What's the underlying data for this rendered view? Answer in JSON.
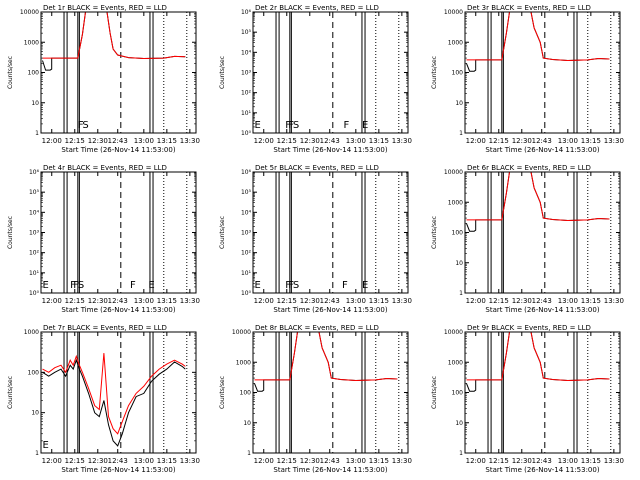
{
  "chart_data": {
    "type": "line",
    "x_ticks": [
      "12:00",
      "12:15",
      "12:30",
      "12:43",
      "13:00",
      "13:15",
      "13:30"
    ],
    "xlabel": "Start Time (26-Nov-14 11:53:00)",
    "ylabel": "Counts/sec",
    "series_names": [
      "BLACK = Events",
      "RED = LLD"
    ],
    "colors": {
      "events": "#000000",
      "lld": "#ff0000"
    },
    "log_y": true,
    "marker_lines": {
      "solid": [
        "12:08",
        "12:10",
        "12:17",
        "12:18",
        "13:04",
        "13:06"
      ],
      "dashed": [
        "12:45"
      ],
      "dotted": [
        "13:13",
        "13:28"
      ]
    },
    "panels": [
      {
        "title": "Det 1r BLACK = Events, RED = LLD",
        "ylim_exp": [
          0,
          4
        ],
        "tick_labels": [
          "1",
          "10",
          "100",
          "1000",
          "10000"
        ],
        "letters": [
          {
            "text": "F",
            "t": "12:17"
          },
          {
            "text": "S",
            "t": "12:20"
          }
        ],
        "events": [
          [
            "11:54",
            250
          ],
          [
            "11:56",
            120
          ],
          [
            "11:59",
            120
          ],
          [
            "12:00",
            130
          ],
          [
            "12:00",
            300
          ],
          [
            "12:08",
            300
          ],
          [
            "12:17",
            300
          ],
          [
            "12:20",
            1800
          ],
          [
            "12:22",
            10000
          ],
          [
            "12:36",
            10000
          ],
          [
            "12:38",
            2000
          ],
          [
            "12:40",
            600
          ],
          [
            "12:43",
            380
          ],
          [
            "12:50",
            310
          ],
          [
            "13:00",
            290
          ],
          [
            "13:13",
            300
          ],
          [
            "13:20",
            340
          ],
          [
            "13:27",
            330
          ]
        ],
        "lld": [
          [
            "11:54",
            300
          ],
          [
            "12:08",
            300
          ],
          [
            "12:17",
            300
          ],
          [
            "12:20",
            1800
          ],
          [
            "12:22",
            10000
          ],
          [
            "12:36",
            10000
          ],
          [
            "12:38",
            2000
          ],
          [
            "12:40",
            600
          ],
          [
            "12:43",
            380
          ],
          [
            "12:50",
            310
          ],
          [
            "13:00",
            290
          ],
          [
            "13:13",
            300
          ],
          [
            "13:20",
            340
          ],
          [
            "13:27",
            330
          ]
        ]
      },
      {
        "title": "Det 2r BLACK = Events, RED = LLD",
        "ylim_exp": [
          0,
          6
        ],
        "tick_labels": [
          "10⁰",
          "10¹",
          "10²",
          "10³",
          "10⁴",
          "10⁵",
          "10⁶"
        ],
        "letters": [
          {
            "text": "E",
            "t": "11:54"
          },
          {
            "text": "F",
            "t": "12:14"
          },
          {
            "text": "F",
            "t": "12:16"
          },
          {
            "text": "S",
            "t": "12:19"
          },
          {
            "text": "F",
            "t": "12:52"
          },
          {
            "text": "E",
            "t": "13:04"
          }
        ],
        "events": [],
        "lld": []
      },
      {
        "title": "Det 3r BLACK = Events, RED = LLD",
        "ylim_exp": [
          0,
          4
        ],
        "tick_labels": [
          "1",
          "10",
          "100",
          "1000",
          "10000"
        ],
        "letters": [],
        "events": [
          [
            "11:54",
            200
          ],
          [
            "11:56",
            110
          ],
          [
            "11:59",
            110
          ],
          [
            "12:00",
            120
          ],
          [
            "12:00",
            260
          ],
          [
            "12:08",
            260
          ],
          [
            "12:17",
            260
          ],
          [
            "12:20",
            2000
          ],
          [
            "12:22",
            10000
          ],
          [
            "12:36",
            10000
          ],
          [
            "12:38",
            3000
          ],
          [
            "12:42",
            1000
          ],
          [
            "12:44",
            300
          ],
          [
            "12:50",
            270
          ],
          [
            "13:00",
            250
          ],
          [
            "13:13",
            260
          ],
          [
            "13:20",
            290
          ],
          [
            "13:27",
            280
          ]
        ],
        "lld": [
          [
            "11:54",
            260
          ],
          [
            "12:08",
            260
          ],
          [
            "12:17",
            260
          ],
          [
            "12:20",
            2000
          ],
          [
            "12:22",
            10000
          ],
          [
            "12:36",
            10000
          ],
          [
            "12:38",
            3000
          ],
          [
            "12:42",
            1000
          ],
          [
            "12:44",
            300
          ],
          [
            "12:50",
            270
          ],
          [
            "13:00",
            250
          ],
          [
            "13:13",
            260
          ],
          [
            "13:20",
            290
          ],
          [
            "13:27",
            280
          ]
        ]
      },
      {
        "title": "Det 4r BLACK = Events, RED = LLD",
        "ylim_exp": [
          0,
          6
        ],
        "tick_labels": [
          "10⁰",
          "10¹",
          "10²",
          "10³",
          "10⁴",
          "10⁵",
          "10⁶"
        ],
        "letters": [
          {
            "text": "E",
            "t": "11:54"
          },
          {
            "text": "F",
            "t": "12:12"
          },
          {
            "text": "F",
            "t": "12:14"
          },
          {
            "text": "S",
            "t": "12:17"
          },
          {
            "text": "F",
            "t": "12:51"
          },
          {
            "text": "E",
            "t": "13:03"
          }
        ],
        "events": [],
        "lld": []
      },
      {
        "title": "Det 5r BLACK = Events, RED = LLD",
        "ylim_exp": [
          0,
          6
        ],
        "tick_labels": [
          "10⁰",
          "10¹",
          "10²",
          "10³",
          "10⁴",
          "10⁵",
          "10⁶"
        ],
        "letters": [
          {
            "text": "E",
            "t": "11:54"
          },
          {
            "text": "F",
            "t": "12:14"
          },
          {
            "text": "F",
            "t": "12:16"
          },
          {
            "text": "S",
            "t": "12:19"
          },
          {
            "text": "F",
            "t": "12:51"
          },
          {
            "text": "E",
            "t": "13:04"
          }
        ],
        "events": [],
        "lld": []
      },
      {
        "title": "Det 6r BLACK = Events, RED = LLD",
        "ylim_exp": [
          0,
          4
        ],
        "tick_labels": [
          "1",
          "10",
          "100",
          "1000",
          "10000"
        ],
        "letters": [],
        "events": [
          [
            "11:54",
            200
          ],
          [
            "11:56",
            110
          ],
          [
            "11:59",
            110
          ],
          [
            "12:00",
            120
          ],
          [
            "12:00",
            260
          ],
          [
            "12:08",
            260
          ],
          [
            "12:17",
            260
          ],
          [
            "12:20",
            2000
          ],
          [
            "12:22",
            10000
          ],
          [
            "12:36",
            10000
          ],
          [
            "12:38",
            3000
          ],
          [
            "12:42",
            1000
          ],
          [
            "12:44",
            300
          ],
          [
            "12:50",
            270
          ],
          [
            "13:00",
            250
          ],
          [
            "13:13",
            260
          ],
          [
            "13:20",
            290
          ],
          [
            "13:27",
            280
          ]
        ],
        "lld": [
          [
            "11:54",
            260
          ],
          [
            "12:08",
            260
          ],
          [
            "12:17",
            260
          ],
          [
            "12:20",
            2000
          ],
          [
            "12:22",
            10000
          ],
          [
            "12:36",
            10000
          ],
          [
            "12:38",
            3000
          ],
          [
            "12:42",
            1000
          ],
          [
            "12:44",
            300
          ],
          [
            "12:50",
            270
          ],
          [
            "13:00",
            250
          ],
          [
            "13:13",
            260
          ],
          [
            "13:20",
            290
          ],
          [
            "13:27",
            280
          ]
        ]
      },
      {
        "title": "Det 7r BLACK = Events, RED = LLD",
        "ylim_exp": [
          0,
          3
        ],
        "tick_labels": [
          "1",
          "10",
          "100",
          "1000"
        ],
        "letters": [
          {
            "text": "E",
            "t": "11:54"
          }
        ],
        "events": [
          [
            "11:54",
            100
          ],
          [
            "11:58",
            80
          ],
          [
            "12:02",
            100
          ],
          [
            "12:06",
            120
          ],
          [
            "12:09",
            80
          ],
          [
            "12:12",
            150
          ],
          [
            "12:14",
            120
          ],
          [
            "12:16",
            200
          ],
          [
            "12:18",
            120
          ],
          [
            "12:20",
            80
          ],
          [
            "12:24",
            30
          ],
          [
            "12:28",
            10
          ],
          [
            "12:31",
            8
          ],
          [
            "12:34",
            20
          ],
          [
            "12:37",
            5
          ],
          [
            "12:40",
            2
          ],
          [
            "12:43",
            1.5
          ],
          [
            "12:46",
            3
          ],
          [
            "12:50",
            10
          ],
          [
            "12:55",
            25
          ],
          [
            "13:00",
            30
          ],
          [
            "13:05",
            60
          ],
          [
            "13:10",
            90
          ],
          [
            "13:15",
            120
          ],
          [
            "13:20",
            180
          ],
          [
            "13:25",
            140
          ],
          [
            "13:27",
            120
          ]
        ],
        "lld": [
          [
            "11:54",
            120
          ],
          [
            "11:58",
            100
          ],
          [
            "12:02",
            130
          ],
          [
            "12:06",
            150
          ],
          [
            "12:09",
            100
          ],
          [
            "12:12",
            200
          ],
          [
            "12:14",
            150
          ],
          [
            "12:16",
            250
          ],
          [
            "12:18",
            150
          ],
          [
            "12:20",
            100
          ],
          [
            "12:24",
            40
          ],
          [
            "12:28",
            15
          ],
          [
            "12:31",
            12
          ],
          [
            "12:34",
            300
          ],
          [
            "12:37",
            8
          ],
          [
            "12:40",
            4
          ],
          [
            "12:43",
            3
          ],
          [
            "12:46",
            6
          ],
          [
            "12:50",
            15
          ],
          [
            "12:55",
            30
          ],
          [
            "13:00",
            45
          ],
          [
            "13:05",
            80
          ],
          [
            "13:10",
            120
          ],
          [
            "13:15",
            160
          ],
          [
            "13:20",
            200
          ],
          [
            "13:25",
            160
          ],
          [
            "13:27",
            140
          ]
        ]
      },
      {
        "title": "Det 8r BLACK = Events, RED = LLD",
        "ylim_exp": [
          0,
          4
        ],
        "tick_labels": [
          "1",
          "10",
          "100",
          "1000",
          "10000"
        ],
        "letters": [],
        "events": [
          [
            "11:54",
            200
          ],
          [
            "11:56",
            110
          ],
          [
            "11:59",
            110
          ],
          [
            "12:00",
            120
          ],
          [
            "12:00",
            260
          ],
          [
            "12:08",
            260
          ],
          [
            "12:17",
            260
          ],
          [
            "12:20",
            2000
          ],
          [
            "12:22",
            10000
          ],
          [
            "12:36",
            10000
          ],
          [
            "12:38",
            3000
          ],
          [
            "12:42",
            1000
          ],
          [
            "12:44",
            300
          ],
          [
            "12:50",
            270
          ],
          [
            "13:00",
            250
          ],
          [
            "13:13",
            260
          ],
          [
            "13:20",
            290
          ],
          [
            "13:27",
            280
          ]
        ],
        "lld": [
          [
            "11:54",
            260
          ],
          [
            "12:08",
            260
          ],
          [
            "12:17",
            260
          ],
          [
            "12:20",
            2000
          ],
          [
            "12:22",
            10000
          ],
          [
            "12:36",
            10000
          ],
          [
            "12:38",
            3000
          ],
          [
            "12:42",
            1000
          ],
          [
            "12:44",
            300
          ],
          [
            "12:50",
            270
          ],
          [
            "13:00",
            250
          ],
          [
            "13:13",
            260
          ],
          [
            "13:20",
            290
          ],
          [
            "13:27",
            280
          ]
        ]
      },
      {
        "title": "Det 9r BLACK = Events, RED = LLD",
        "ylim_exp": [
          0,
          4
        ],
        "tick_labels": [
          "1",
          "10",
          "100",
          "1000",
          "10000"
        ],
        "letters": [],
        "events": [
          [
            "11:54",
            200
          ],
          [
            "11:56",
            110
          ],
          [
            "11:59",
            110
          ],
          [
            "12:00",
            120
          ],
          [
            "12:00",
            260
          ],
          [
            "12:08",
            260
          ],
          [
            "12:17",
            260
          ],
          [
            "12:20",
            2000
          ],
          [
            "12:22",
            10000
          ],
          [
            "12:36",
            10000
          ],
          [
            "12:38",
            3000
          ],
          [
            "12:42",
            1000
          ],
          [
            "12:44",
            300
          ],
          [
            "12:50",
            270
          ],
          [
            "13:00",
            250
          ],
          [
            "13:13",
            260
          ],
          [
            "13:20",
            290
          ],
          [
            "13:27",
            280
          ]
        ],
        "lld": [
          [
            "11:54",
            260
          ],
          [
            "12:08",
            260
          ],
          [
            "12:17",
            260
          ],
          [
            "12:20",
            2000
          ],
          [
            "12:22",
            10000
          ],
          [
            "12:36",
            10000
          ],
          [
            "12:38",
            3000
          ],
          [
            "12:42",
            1000
          ],
          [
            "12:44",
            300
          ],
          [
            "12:50",
            270
          ],
          [
            "13:00",
            250
          ],
          [
            "13:13",
            260
          ],
          [
            "13:20",
            290
          ],
          [
            "13:27",
            280
          ]
        ]
      }
    ]
  }
}
